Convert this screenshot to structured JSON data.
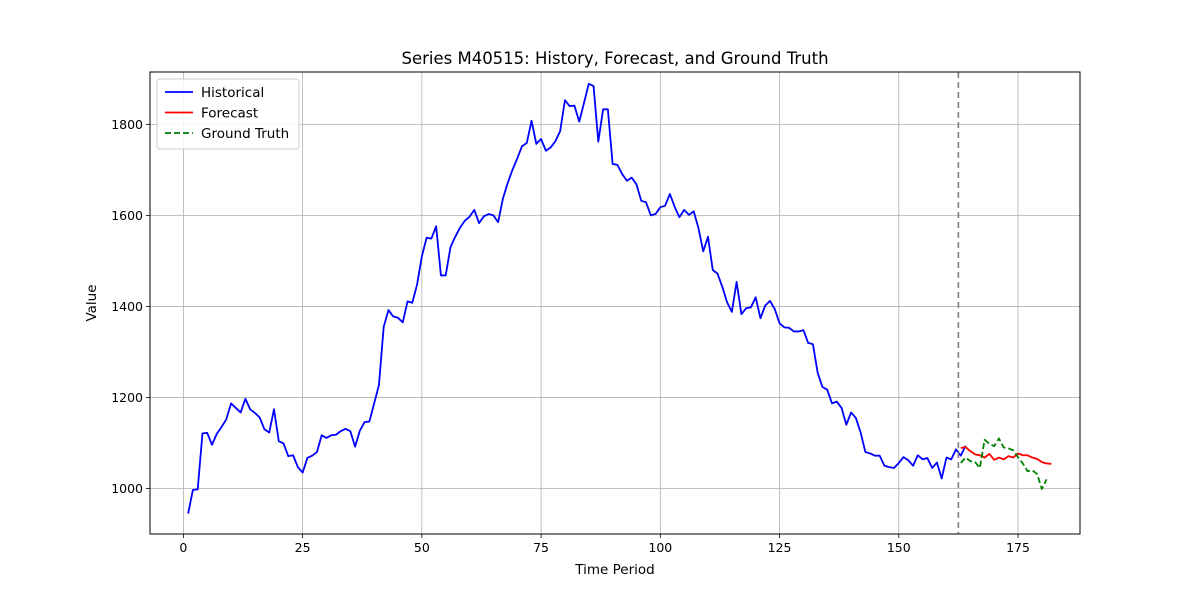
{
  "chart_data": {
    "type": "line",
    "title": "Series M40515: History, Forecast, and Ground Truth",
    "xlabel": "Time Period",
    "ylabel": "Value",
    "xlim": [
      -7,
      188
    ],
    "ylim": [
      900,
      1915
    ],
    "xticks": [
      0,
      25,
      50,
      75,
      100,
      125,
      150,
      175
    ],
    "yticks": [
      1000,
      1200,
      1400,
      1600,
      1800
    ],
    "grid": true,
    "legend_position": "top-left",
    "forecast_start_marker": 162.5,
    "series": [
      {
        "name": "Historical",
        "color": "#0000ff",
        "style": "solid",
        "x_start": 1,
        "values": [
          945,
          997,
          998,
          1121,
          1122,
          1096,
          1120,
          1135,
          1152,
          1187,
          1177,
          1167,
          1197,
          1174,
          1166,
          1156,
          1130,
          1123,
          1174,
          1104,
          1099,
          1071,
          1073,
          1047,
          1035,
          1067,
          1072,
          1080,
          1117,
          1111,
          1117,
          1118,
          1126,
          1131,
          1126,
          1092,
          1127,
          1146,
          1147,
          1187,
          1227,
          1355,
          1392,
          1378,
          1375,
          1365,
          1411,
          1408,
          1448,
          1510,
          1551,
          1549,
          1576,
          1468,
          1468,
          1530,
          1553,
          1573,
          1588,
          1597,
          1612,
          1583,
          1598,
          1603,
          1600,
          1585,
          1637,
          1671,
          1700,
          1725,
          1752,
          1759,
          1808,
          1757,
          1768,
          1742,
          1749,
          1763,
          1785,
          1853,
          1840,
          1841,
          1806,
          1847,
          1889,
          1884,
          1762,
          1833,
          1833,
          1713,
          1711,
          1691,
          1676,
          1683,
          1668,
          1632,
          1629,
          1600,
          1603,
          1618,
          1621,
          1647,
          1619,
          1596,
          1612,
          1601,
          1609,
          1572,
          1521,
          1553,
          1480,
          1472,
          1443,
          1409,
          1388,
          1454,
          1383,
          1396,
          1398,
          1420,
          1374,
          1402,
          1412,
          1394,
          1363,
          1354,
          1353,
          1345,
          1345,
          1348,
          1320,
          1317,
          1254,
          1223,
          1217,
          1187,
          1191,
          1177,
          1140,
          1167,
          1155,
          1123,
          1080,
          1077,
          1072,
          1072,
          1050,
          1047,
          1045,
          1056,
          1069,
          1062,
          1050,
          1073,
          1064,
          1067,
          1045,
          1057,
          1022,
          1068,
          1064,
          1086,
          1072,
          1094
        ]
      },
      {
        "name": "Forecast",
        "color": "#ff0000",
        "style": "solid",
        "x_start": 163,
        "values": [
          1089,
          1091,
          1082,
          1075,
          1073,
          1068,
          1076,
          1063,
          1068,
          1064,
          1071,
          1068,
          1077,
          1073,
          1073,
          1068,
          1065,
          1058,
          1055,
          1054
        ]
      },
      {
        "name": "Ground Truth",
        "color": "#008000",
        "style": "dashed",
        "x_start": 163,
        "values": [
          1056,
          1068,
          1060,
          1058,
          1045,
          1107,
          1098,
          1093,
          1110,
          1090,
          1088,
          1084,
          1069,
          1055,
          1038,
          1040,
          1032,
          999,
          1020
        ]
      }
    ]
  }
}
